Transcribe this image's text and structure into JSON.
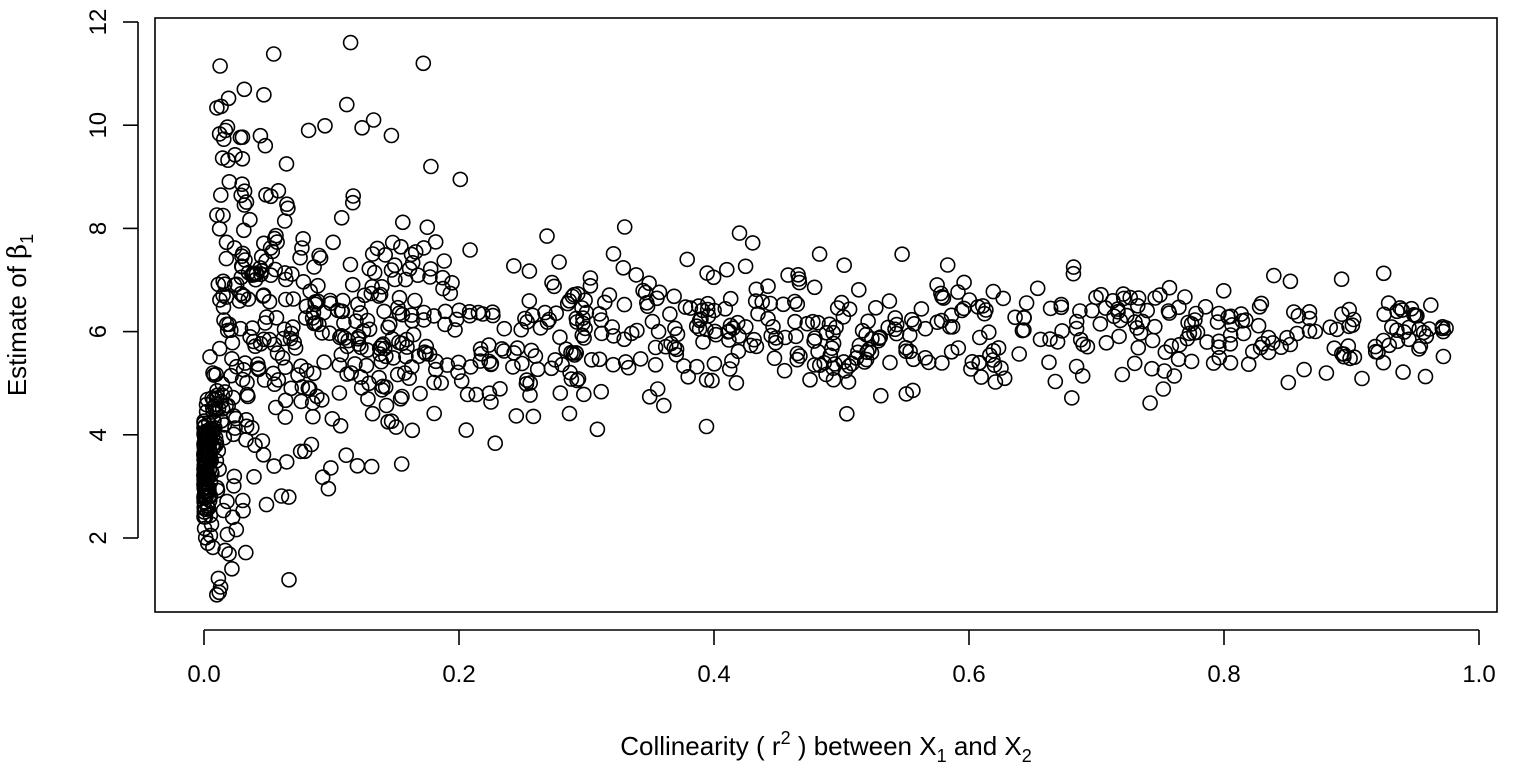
{
  "chart_data": {
    "type": "scatter",
    "title": "",
    "xlabel": {
      "prefix": "Collinearity ( r",
      "sup": "2",
      "mid": " ) between X",
      "sub1": "1",
      "and": " and X",
      "sub2": "2"
    },
    "ylabel": {
      "prefix": "Estimate of ",
      "symbol": "β",
      "sub": "1"
    },
    "xlim": [
      0.0,
      1.0
    ],
    "ylim": [
      0,
      12
    ],
    "x_ticks": [
      "0.0",
      "0.2",
      "0.4",
      "0.6",
      "0.8",
      "1.0"
    ],
    "x_tick_values": [
      0.0,
      0.2,
      0.4,
      0.6,
      0.8,
      1.0
    ],
    "y_ticks": [
      "2",
      "4",
      "6",
      "8",
      "10",
      "12"
    ],
    "y_tick_values": [
      2,
      4,
      6,
      8,
      10,
      12
    ],
    "grid": false,
    "marker": "open-circle",
    "marker_color": "#000000",
    "sample_points": [
      [
        0.115,
        11.6
      ],
      [
        0.172,
        11.2
      ],
      [
        0.112,
        10.4
      ],
      [
        0.133,
        10.1
      ],
      [
        0.201,
        8.95
      ],
      [
        0.178,
        9.2
      ],
      [
        0.082,
        9.9
      ],
      [
        0.147,
        9.8
      ],
      [
        0.124,
        9.95
      ],
      [
        0.01,
        0.9
      ],
      [
        0.013,
        1.05
      ],
      [
        0.003,
        1.9
      ],
      [
        0.005,
        2.05
      ],
      [
        0.269,
        7.85
      ],
      [
        0.379,
        7.4
      ],
      [
        0.41,
        7.2
      ],
      [
        0.466,
        7.1
      ],
      [
        0.467,
        6.95
      ],
      [
        0.733,
        6.65
      ],
      [
        0.58,
        6.65
      ],
      [
        0.664,
        6.45
      ],
      [
        0.62,
        5.35
      ],
      [
        0.538,
        5.4
      ],
      [
        0.333,
        5.3
      ],
      [
        0.754,
        5.6
      ],
      [
        0.852,
        5.75
      ],
      [
        0.972,
        6.0
      ],
      [
        0.961,
        6.05
      ],
      [
        0.945,
        5.85
      ],
      [
        0.898,
        6.1
      ],
      [
        0.796,
        6.35
      ],
      [
        0.778,
        6.35
      ],
      [
        0.703,
        6.15
      ],
      [
        0.687,
        6.4
      ],
      [
        0.596,
        6.45
      ],
      [
        0.52,
        5.6
      ]
    ]
  }
}
